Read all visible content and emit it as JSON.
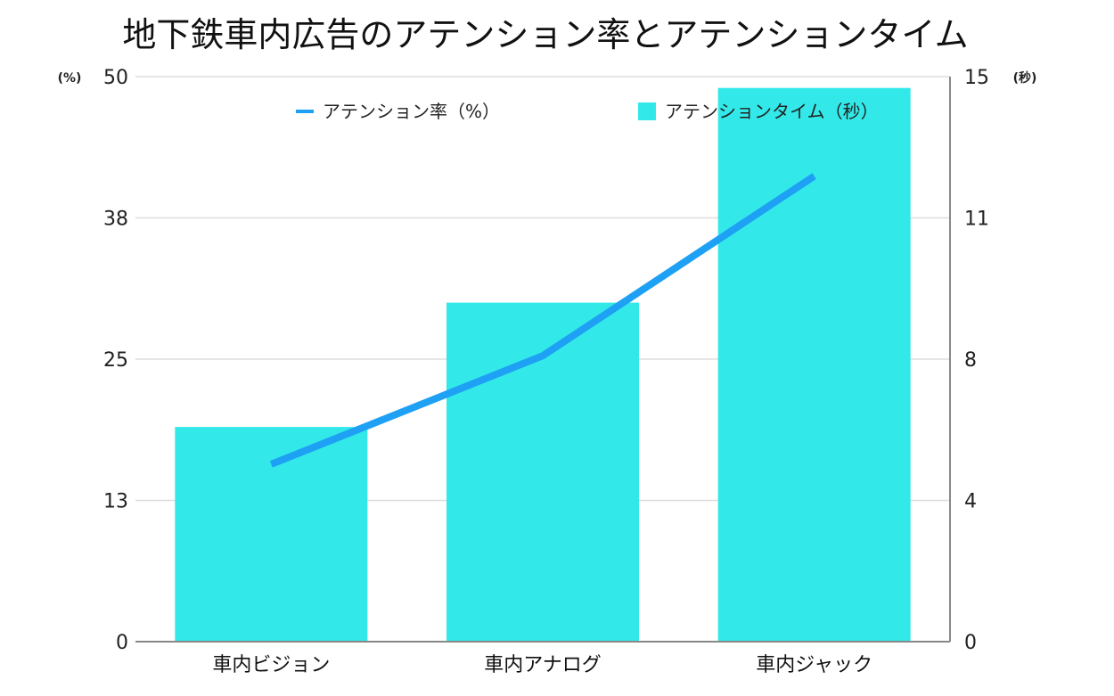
{
  "chart_data": {
    "type": "bar+line",
    "title": "地下鉄車内広告のアテンション率とアテンションタイム",
    "categories": [
      "車内ビジョン",
      "車内アナログ",
      "車内ジャック"
    ],
    "left_axis": {
      "unit": "(%)",
      "ticks": [
        0,
        13,
        25,
        38,
        50
      ],
      "ylim": [
        0,
        50
      ]
    },
    "right_axis": {
      "unit": "(秒)",
      "ticks": [
        0,
        4,
        8,
        11,
        15
      ],
      "ylim": [
        0,
        15
      ]
    },
    "series": [
      {
        "name": "アテンションタイム（秒）",
        "type": "bar",
        "axis": "right",
        "values": [
          5.7,
          9.0,
          14.7
        ]
      },
      {
        "name": "アテンション率（%）",
        "type": "line",
        "axis": "left",
        "values": [
          15.7,
          25.3,
          41.2
        ]
      }
    ],
    "legend_position": "top",
    "grid": true,
    "colors": {
      "bar": "#33E8E8",
      "line": "#1EA0F5",
      "grid": "#DDDDDD",
      "axis": "#888888"
    }
  }
}
